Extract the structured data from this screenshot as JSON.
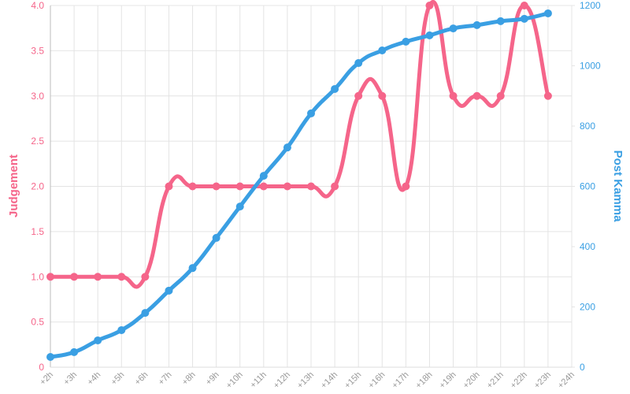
{
  "chart_data": {
    "type": "line",
    "categories": [
      "+2h",
      "+3h",
      "+4h",
      "+5h",
      "+6h",
      "+7h",
      "+8h",
      "+9h",
      "+10h",
      "+11h",
      "+12h",
      "+13h",
      "+14h",
      "+15h",
      "+16h",
      "+17h",
      "+18h",
      "+19h",
      "+20h",
      "+21h",
      "+22h",
      "+23h",
      "+24h"
    ],
    "series": [
      {
        "name": "Judgement",
        "color": "#f5658a",
        "axis": "y",
        "values": [
          1,
          1,
          1,
          1,
          1,
          2,
          2,
          2,
          2,
          2,
          2,
          2,
          2,
          3,
          3,
          2,
          4,
          3,
          3,
          3,
          4,
          3,
          null
        ]
      },
      {
        "name": "Post Kamma",
        "color": "#3a9fe3",
        "axis": "y2",
        "values": [
          34,
          50,
          89,
          123,
          180,
          254,
          329,
          429,
          533,
          635,
          729,
          842,
          923,
          1009,
          1051,
          1080,
          1101,
          1124,
          1135,
          1148,
          1156,
          1174,
          null
        ]
      }
    ],
    "ylabel": "Judgement",
    "y2label": "Post Kamma",
    "ylim": [
      0,
      4
    ],
    "yticks": [
      0,
      0.5,
      {
        "value": 1,
        "label": "1.0"
      },
      1.5,
      {
        "value": 2,
        "label": "2.0"
      },
      2.5,
      {
        "value": 3,
        "label": "3.0"
      },
      3.5,
      {
        "value": 4,
        "label": "4.0"
      }
    ],
    "y2lim": [
      0,
      1200
    ],
    "y2ticks": [
      0,
      200,
      400,
      600,
      800,
      1000,
      1200
    ],
    "grid": true
  }
}
